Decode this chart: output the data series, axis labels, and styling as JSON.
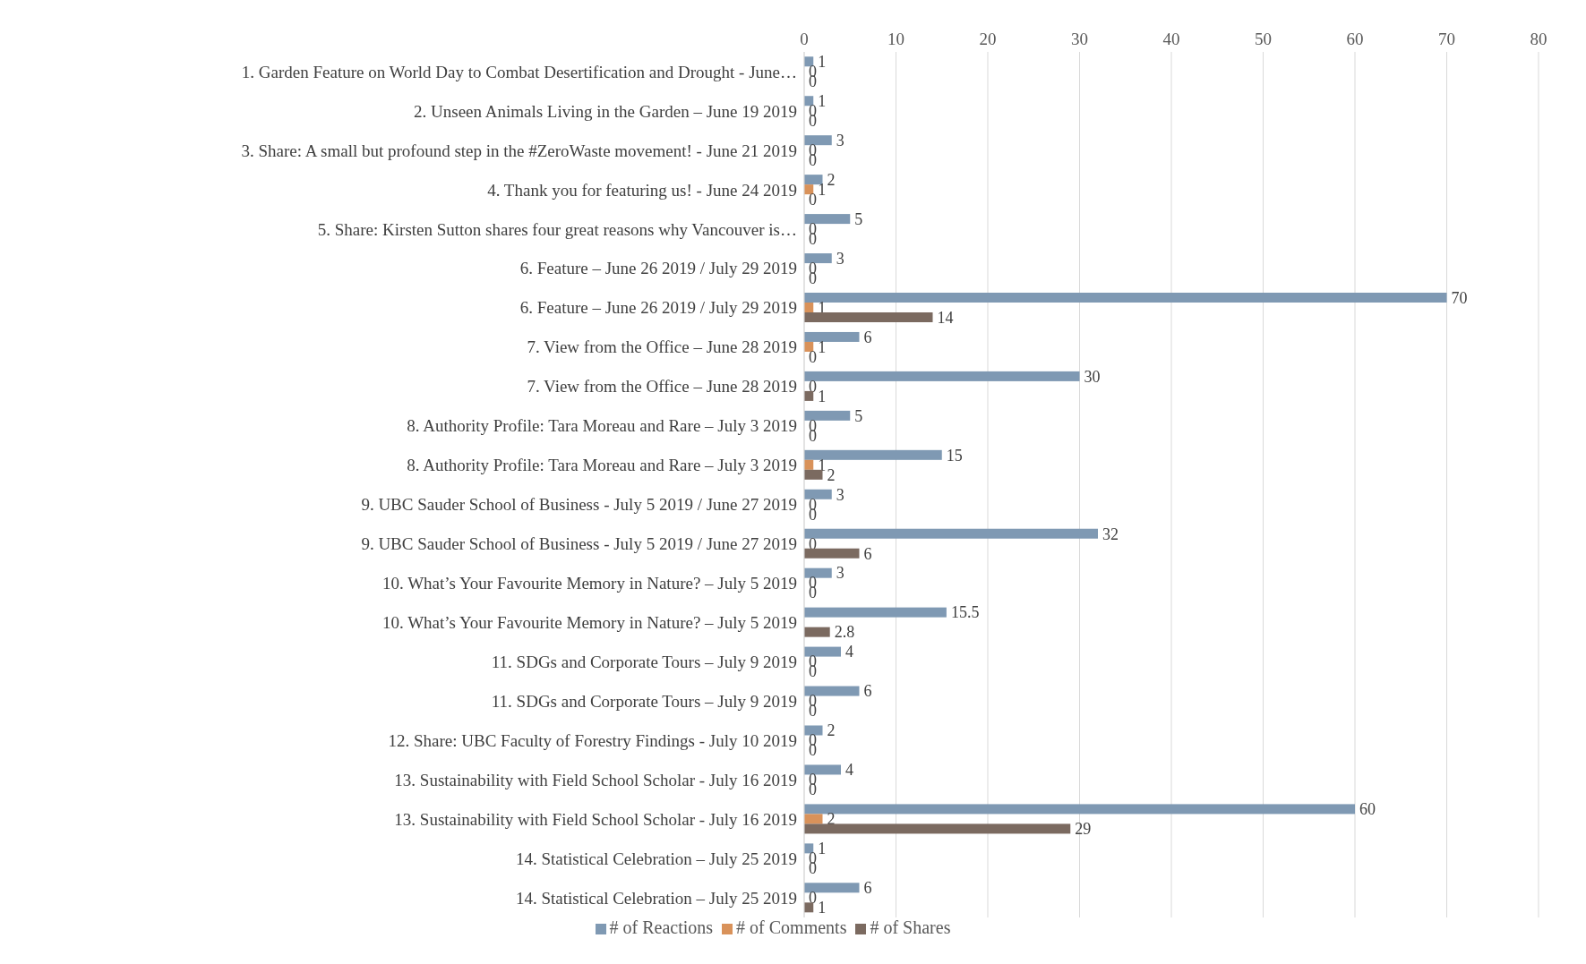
{
  "chart_data": {
    "type": "bar",
    "orientation": "horizontal",
    "categories": [
      "1. Garden Feature on World Day to Combat Desertification and Drought - June…",
      "2. Unseen Animals Living in the Garden – June 19 2019",
      "3. Share: A small but profound step in the #ZeroWaste movement! - June 21 2019",
      "4. Thank you for featuring us! - June 24 2019",
      "5. Share: Kirsten Sutton shares four great reasons why Vancouver is…",
      "6. Feature – June 26 2019 / July 29 2019",
      "6. Feature – June 26 2019 / July 29 2019",
      "7. View from the Office – June 28 2019",
      "7. View from the Office – June 28 2019",
      "8. Authority Profile: Tara Moreau and Rare – July 3 2019",
      "8. Authority Profile: Tara Moreau and Rare – July 3 2019",
      "9. UBC Sauder School of Business - July 5 2019 / June 27 2019",
      "9. UBC Sauder School of Business - July 5 2019 / June 27 2019",
      "10. What’s Your Favourite Memory in Nature? – July 5 2019",
      "10. What’s Your Favourite Memory in Nature? – July 5 2019",
      "11. SDGs and Corporate Tours – July 9 2019",
      "11. SDGs and Corporate Tours – July 9 2019",
      "12. Share: UBC Faculty of Forestry Findings - July 10 2019",
      "13. Sustainability with Field School Scholar -  July 16 2019",
      "13. Sustainability with Field School Scholar -  July 16 2019",
      "14. Statistical Celebration – July 25 2019",
      "14. Statistical Celebration – July 25 2019"
    ],
    "series": [
      {
        "name": "# of Reactions",
        "color": "#7f99b3",
        "values": [
          1,
          1,
          3,
          2,
          5,
          3,
          70,
          6,
          30,
          5,
          15,
          3,
          32,
          3,
          15.5,
          4,
          6,
          2,
          4,
          60,
          1,
          6
        ]
      },
      {
        "name": "# of Comments",
        "color": "#d9925a",
        "values": [
          0,
          0,
          0,
          1,
          0,
          0,
          1,
          1,
          0,
          0,
          1,
          0,
          0,
          0,
          null,
          0,
          0,
          0,
          0,
          2,
          0,
          0
        ]
      },
      {
        "name": "# of Shares",
        "color": "#7b6a60",
        "values": [
          0,
          0,
          0,
          0,
          0,
          0,
          14,
          0,
          1,
          0,
          2,
          0,
          6,
          0,
          2.8,
          0,
          0,
          0,
          0,
          29,
          0,
          1
        ]
      }
    ],
    "xlim": [
      0,
      80
    ],
    "xticks": [
      0,
      10,
      20,
      30,
      40,
      50,
      60,
      70,
      80
    ],
    "grid": "x",
    "legend": "bottom",
    "data_labels": true
  }
}
